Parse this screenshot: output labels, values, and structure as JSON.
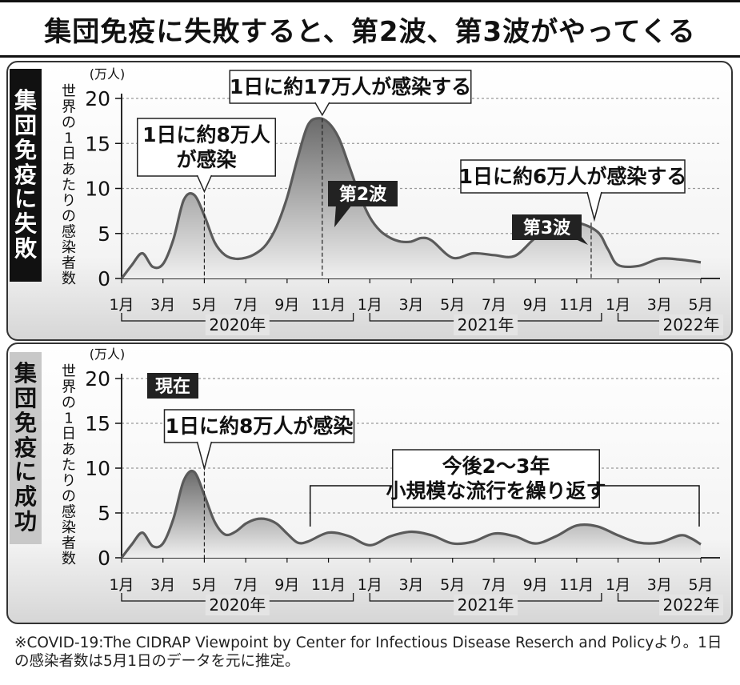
{
  "title": "集団免疫に失敗すると、第2波、第3波がやってくる",
  "footnote": "※COVID-19:The CIDRAP Viewpoint by Center for Infectious Disease Reserch and Policyより。1日の感染者数は5月1日のデータを元に推定。",
  "colors": {
    "curve": "#5a5a5a",
    "fill_dark": "#6a6a6a",
    "fill_light": "#f0f0f0",
    "grid": "#999999",
    "label_bg": "#222222"
  },
  "chart_data": [
    {
      "type": "area",
      "panel_label": "集団免疫に失敗",
      "ylabel": "世界の1日あたりの感染者数",
      "yunit": "(万人)",
      "ylim": [
        0,
        20
      ],
      "yticks": [
        "0",
        "5",
        "10",
        "15",
        "20"
      ],
      "xticks": [
        "1月",
        "3月",
        "5月",
        "7月",
        "9月",
        "11月",
        "1月",
        "3月",
        "5月",
        "7月",
        "9月",
        "11月",
        "1月",
        "3月",
        "5月"
      ],
      "year_labels": [
        "2020年",
        "2021年",
        "2022年"
      ],
      "grid": true,
      "x_months": [
        0,
        0.5,
        1,
        1.5,
        2,
        2.5,
        3,
        3.5,
        4,
        4.5,
        5,
        5.5,
        6,
        6.5,
        7,
        7.5,
        8,
        8.5,
        9,
        9.5,
        10,
        10.5,
        11,
        11.5,
        12,
        12.5,
        13,
        13.5,
        14,
        14.5,
        15,
        16,
        17,
        18,
        19,
        20,
        21,
        22,
        23,
        23.5,
        24,
        25,
        26,
        27,
        28
      ],
      "series": [
        {
          "values": [
            0,
            1.5,
            2.8,
            1.3,
            1.6,
            4.3,
            8.7,
            9.3,
            7,
            4,
            2.6,
            2.2,
            2.3,
            2.8,
            3.8,
            5.8,
            9,
            13.3,
            17,
            17.8,
            17.3,
            15.6,
            12.5,
            9.3,
            6.8,
            5.3,
            4.5,
            4.1,
            4.1,
            4.5,
            4.2,
            2.3,
            2.8,
            2.6,
            2.5,
            4.5,
            5.9,
            6.2,
            5.2,
            3.3,
            1.5,
            1.4,
            2.2,
            2.1,
            1.8
          ]
        }
      ],
      "annotations": [
        {
          "text": "1日に約8万人が感染",
          "lines": [
            "1日に約8万人",
            "が感染"
          ],
          "x_month": 4,
          "y": 9.3
        },
        {
          "text": "1日に約17万人が感染する",
          "x_month": 9.7,
          "y": 17.8
        },
        {
          "text": "1日に約6万人が感染する",
          "x_month": 22.7,
          "y": 6.2
        },
        {
          "text": "第2波"
        },
        {
          "text": "第3波"
        }
      ]
    },
    {
      "type": "area",
      "panel_label": "集団免疫に成功",
      "ylabel": "世界の1日あたりの感染者数",
      "yunit": "(万人)",
      "ylim": [
        0,
        20
      ],
      "yticks": [
        "0",
        "5",
        "10",
        "15",
        "20"
      ],
      "xticks": [
        "1月",
        "3月",
        "5月",
        "7月",
        "9月",
        "11月",
        "1月",
        "3月",
        "5月",
        "7月",
        "9月",
        "11月",
        "1月",
        "3月",
        "5月"
      ],
      "year_labels": [
        "2020年",
        "2021年",
        "2022年"
      ],
      "grid": true,
      "x_months": [
        0,
        0.5,
        1,
        1.5,
        2,
        2.5,
        3,
        3.5,
        4,
        4.5,
        5,
        5.5,
        6,
        6.5,
        7,
        7.5,
        8,
        8.5,
        9,
        10,
        11,
        12,
        13,
        14,
        15,
        16,
        17,
        18,
        19,
        20,
        21,
        22,
        23,
        24,
        25,
        26,
        27,
        27.5,
        28
      ],
      "series": [
        {
          "values": [
            0,
            1.5,
            2.8,
            1.3,
            1.6,
            4.3,
            8.6,
            9.6,
            7,
            4,
            2.6,
            2.9,
            3.8,
            4.3,
            4.3,
            3.8,
            2.7,
            1.7,
            1.8,
            2.8,
            2.4,
            1.4,
            2.4,
            2.9,
            2.5,
            1.6,
            1.8,
            2.7,
            2.4,
            1.6,
            2.4,
            3.6,
            3.5,
            2.5,
            1.7,
            1.7,
            2.5,
            2.2,
            1.5
          ]
        }
      ],
      "annotations": [
        {
          "text": "現在"
        },
        {
          "text": "1日に約8万人が感染",
          "x_month": 4,
          "y": 9.6
        },
        {
          "text": "今後2〜3年小規模な流行を繰り返す",
          "lines": [
            "今後2〜3年",
            "小規模な流行を繰り返す"
          ],
          "x_month_range": [
            9,
            28
          ]
        }
      ]
    }
  ]
}
